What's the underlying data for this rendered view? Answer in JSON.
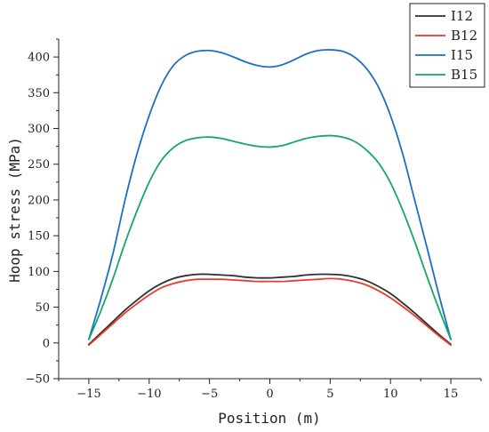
{
  "chart_data": {
    "type": "line",
    "xlabel": "Position (m)",
    "ylabel": "Hoop stress (MPa)",
    "xlim": [
      -17.5,
      17.5
    ],
    "ylim": [
      -50,
      425
    ],
    "xticks": [
      -15,
      -10,
      -5,
      0,
      5,
      10,
      15
    ],
    "yticks": [
      -50,
      0,
      50,
      100,
      150,
      200,
      250,
      300,
      350,
      400
    ],
    "x": [
      -15,
      -14,
      -13,
      -12,
      -11,
      -10,
      -9,
      -8,
      -7,
      -6,
      -5,
      -4,
      -3,
      -2,
      -1,
      0,
      1,
      2,
      3,
      4,
      5,
      6,
      7,
      8,
      9,
      10,
      11,
      12,
      13,
      14,
      15
    ],
    "legend_position": "top-right",
    "series": [
      {
        "name": "I12",
        "color": "#2f2f2f",
        "values": [
          -2,
          14,
          30,
          46,
          60,
          73,
          83,
          90,
          94,
          96,
          96,
          95,
          94,
          92,
          91,
          91,
          92,
          93,
          95,
          96,
          96,
          95,
          92,
          87,
          79,
          69,
          56,
          42,
          27,
          12,
          -2
        ]
      },
      {
        "name": "B12",
        "color": "#e83a2e",
        "values": [
          -3,
          12,
          27,
          42,
          55,
          67,
          77,
          83,
          87,
          89,
          89,
          89,
          88,
          87,
          86,
          86,
          86,
          87,
          88,
          89,
          90,
          89,
          86,
          81,
          73,
          63,
          51,
          38,
          24,
          10,
          -3
        ]
      },
      {
        "name": "I15",
        "color": "#1f6fc0",
        "values": [
          5,
          62,
          125,
          200,
          265,
          318,
          360,
          388,
          402,
          408,
          409,
          406,
          400,
          393,
          388,
          386,
          389,
          396,
          404,
          409,
          410,
          408,
          400,
          384,
          358,
          318,
          265,
          200,
          135,
          68,
          5
        ]
      },
      {
        "name": "B15",
        "color": "#11a86a",
        "values": [
          5,
          45,
          90,
          140,
          185,
          225,
          255,
          273,
          283,
          287,
          288,
          286,
          282,
          278,
          275,
          274,
          276,
          281,
          286,
          289,
          290,
          288,
          282,
          270,
          252,
          224,
          186,
          142,
          94,
          48,
          5
        ]
      }
    ]
  }
}
